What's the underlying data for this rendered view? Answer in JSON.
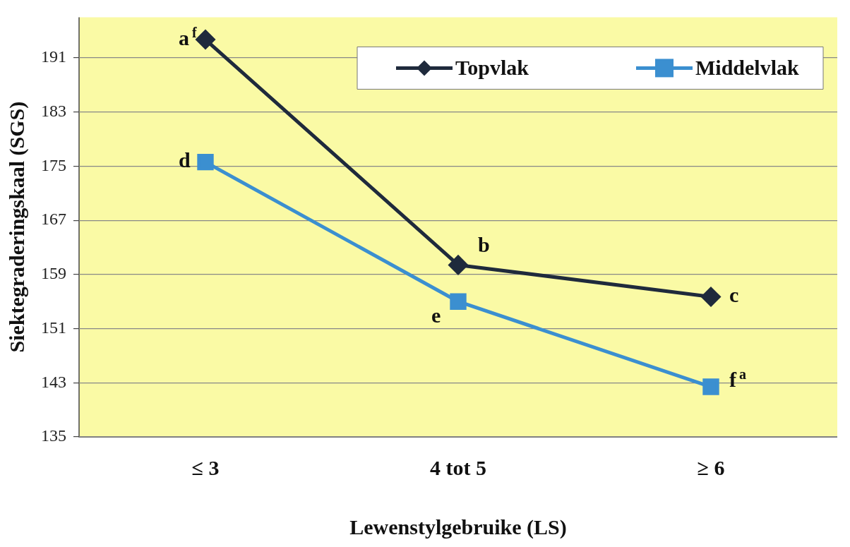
{
  "chart_data": {
    "type": "line",
    "xlabel": "Lewenstylgebruike (LS)",
    "ylabel": "Siektegraderingskaal (SGS)",
    "categories": [
      "≤ 3",
      "4 tot 5",
      "≥ 6"
    ],
    "series": [
      {
        "name": "Topvlak",
        "color": "#1f2a3c",
        "marker": "diamond",
        "values": [
          193.7,
          160.4,
          155.7
        ]
      },
      {
        "name": "Middelvlak",
        "color": "#3b8fd0",
        "marker": "square",
        "values": [
          175.6,
          155,
          142.4
        ]
      }
    ],
    "ylim": [
      135,
      197
    ],
    "yticks": [
      135,
      143,
      151,
      159,
      167,
      175,
      183,
      191
    ],
    "grid": "y",
    "legend": "top right",
    "line_style": "solid",
    "annotations": [
      {
        "text": "a$^{f}$",
        "x": "≤ 3",
        "y": 193.7
      },
      {
        "text": "b",
        "x": "4 tot 5",
        "y": 160.4
      },
      {
        "text": "c",
        "x": "≥ 6",
        "y": 155.7
      },
      {
        "text": "d",
        "x": "≤ 3",
        "y": 175.6
      },
      {
        "text": "e",
        "x": "4 tot 5",
        "y": 155
      },
      {
        "text": "f$^{a}$",
        "x": "≥ 6",
        "y": 142.4
      }
    ]
  }
}
